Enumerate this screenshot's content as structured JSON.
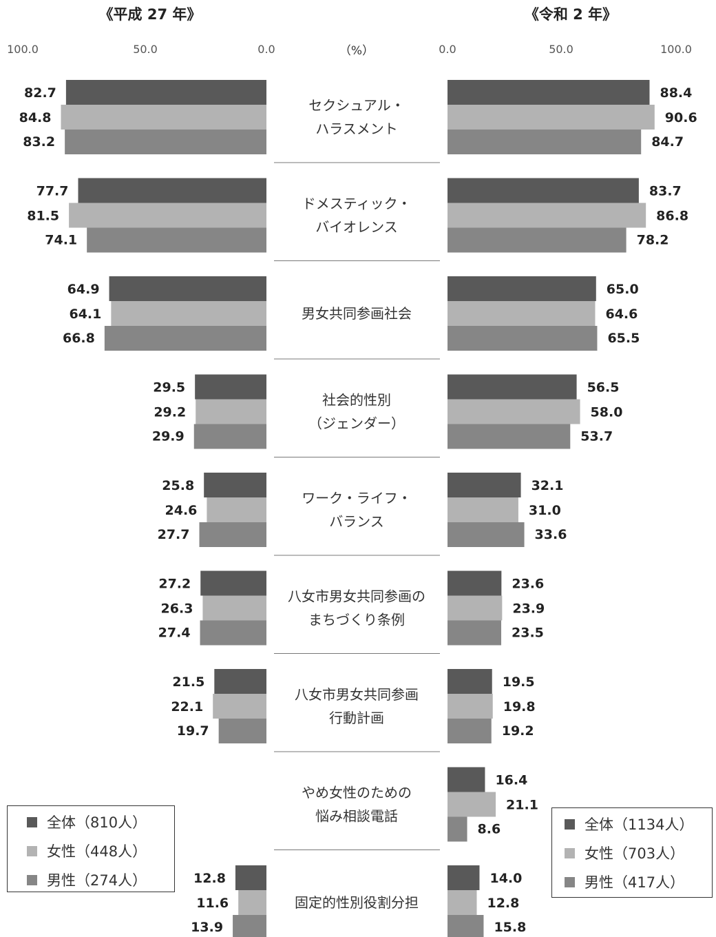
{
  "chart_data": {
    "type": "bar",
    "orientation": "horizontal",
    "unit_label": "（%）",
    "categories": [
      [
        "セクシュアル・",
        "ハラスメント"
      ],
      [
        "ドメスティック・",
        "バイオレンス"
      ],
      [
        "男女共同参画社会"
      ],
      [
        "社会的性別",
        "（ジェンダー）"
      ],
      [
        "ワーク・ライフ・",
        "バランス"
      ],
      [
        "八女市男女共同参画の",
        "まちづくり条例"
      ],
      [
        "八女市男女共同参画",
        "行動計画"
      ],
      [
        "やめ女性のための",
        "悩み相談電話"
      ],
      [
        "固定的性別役割分担"
      ]
    ],
    "colors": [
      "#595959",
      "#b3b3b3",
      "#868686"
    ],
    "panels": [
      {
        "title": "《平成 27 年》",
        "direction": "left",
        "axis_ticks": [
          "100.0",
          "50.0",
          "0.0"
        ],
        "xlim": [
          0,
          100
        ],
        "legend_position": "bottom-left",
        "series": [
          {
            "name": "全体（810人）",
            "values": [
              82.7,
              77.7,
              64.9,
              29.5,
              25.8,
              27.2,
              21.5,
              null,
              12.8
            ]
          },
          {
            "name": "女性（448人）",
            "values": [
              84.8,
              81.5,
              64.1,
              29.2,
              24.6,
              26.3,
              22.1,
              null,
              11.6
            ]
          },
          {
            "name": "男性（274人）",
            "values": [
              83.2,
              74.1,
              66.8,
              29.9,
              27.7,
              27.4,
              19.7,
              null,
              13.9
            ]
          }
        ]
      },
      {
        "title": "《令和 2 年》",
        "direction": "right",
        "axis_ticks": [
          "0.0",
          "50.0",
          "100.0"
        ],
        "xlim": [
          0,
          100
        ],
        "legend_position": "bottom-right",
        "series": [
          {
            "name": "全体（1134人）",
            "values": [
              88.4,
              83.7,
              65.0,
              56.5,
              32.1,
              23.6,
              19.5,
              16.4,
              14.0
            ]
          },
          {
            "name": "女性（703人）",
            "values": [
              90.6,
              86.8,
              64.6,
              58.0,
              31.0,
              23.9,
              19.8,
              21.1,
              12.8
            ]
          },
          {
            "name": "男性（417人）",
            "values": [
              84.7,
              78.2,
              65.5,
              53.7,
              33.6,
              23.5,
              19.2,
              8.6,
              15.8
            ]
          }
        ]
      }
    ]
  }
}
